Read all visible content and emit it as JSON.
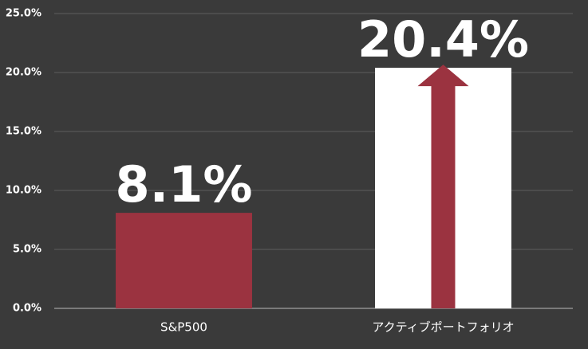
{
  "chart_data": {
    "type": "bar",
    "categories": [
      "S&P500",
      "アクティブポートフォリオ"
    ],
    "values": [
      8.1,
      20.4
    ],
    "value_labels": [
      "8.1%",
      "20.4%"
    ],
    "colors": [
      "#9b3340",
      "#ffffff"
    ],
    "ylim": [
      0,
      25
    ],
    "yticks": [
      {
        "value": 0,
        "label": "0.0%"
      },
      {
        "value": 5,
        "label": "5.0%"
      },
      {
        "value": 10,
        "label": "10.0%"
      },
      {
        "value": 15,
        "label": "15.0%"
      },
      {
        "value": 20,
        "label": "20.0%"
      },
      {
        "value": 25,
        "label": "25.0%"
      }
    ],
    "grid": true
  }
}
